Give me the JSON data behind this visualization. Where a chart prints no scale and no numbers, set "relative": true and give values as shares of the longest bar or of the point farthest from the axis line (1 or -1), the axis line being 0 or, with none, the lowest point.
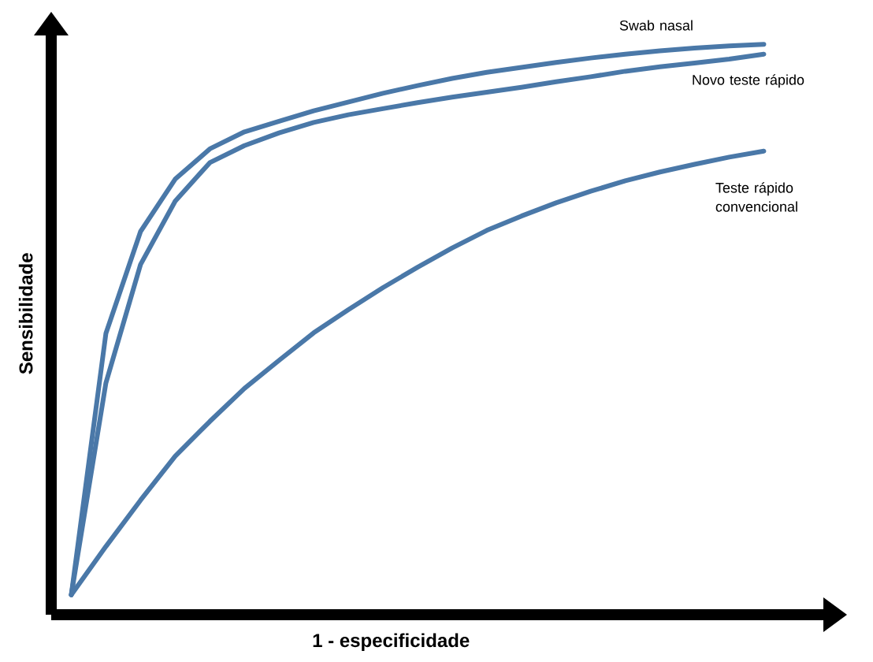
{
  "chart_data": {
    "type": "line",
    "relative": true,
    "xlabel": "1 - especificidade",
    "ylabel": "Sensibilidade",
    "categories": [
      null,
      null,
      null,
      null,
      null,
      null,
      null,
      null,
      null,
      null,
      null,
      null,
      null,
      null,
      null,
      null,
      null,
      null,
      null,
      null,
      null
    ],
    "series": [
      {
        "name": "Swab nasal",
        "color": "#4a78a8",
        "values": [
          0,
          0.475,
          0.66,
          0.755,
          0.81,
          0.841,
          0.86,
          0.879,
          0.895,
          0.911,
          0.925,
          0.938,
          0.949,
          0.958,
          0.967,
          0.975,
          0.982,
          0.988,
          0.993,
          0.997,
          1.0
        ]
      },
      {
        "name": "Novo teste rápido",
        "color": "#4a78a8",
        "values": [
          0,
          0.385,
          0.6,
          0.715,
          0.785,
          0.816,
          0.839,
          0.858,
          0.872,
          0.883,
          0.894,
          0.904,
          0.913,
          0.922,
          0.932,
          0.941,
          0.951,
          0.959,
          0.966,
          0.973,
          0.982
        ]
      },
      {
        "name": "Teste rápido convencional",
        "color": "#4a78a8",
        "values": [
          0,
          0.088,
          0.172,
          0.252,
          0.315,
          0.375,
          0.426,
          0.476,
          0.518,
          0.558,
          0.595,
          0.63,
          0.662,
          0.688,
          0.712,
          0.733,
          0.752,
          0.768,
          0.782,
          0.795,
          0.806
        ]
      }
    ]
  }
}
